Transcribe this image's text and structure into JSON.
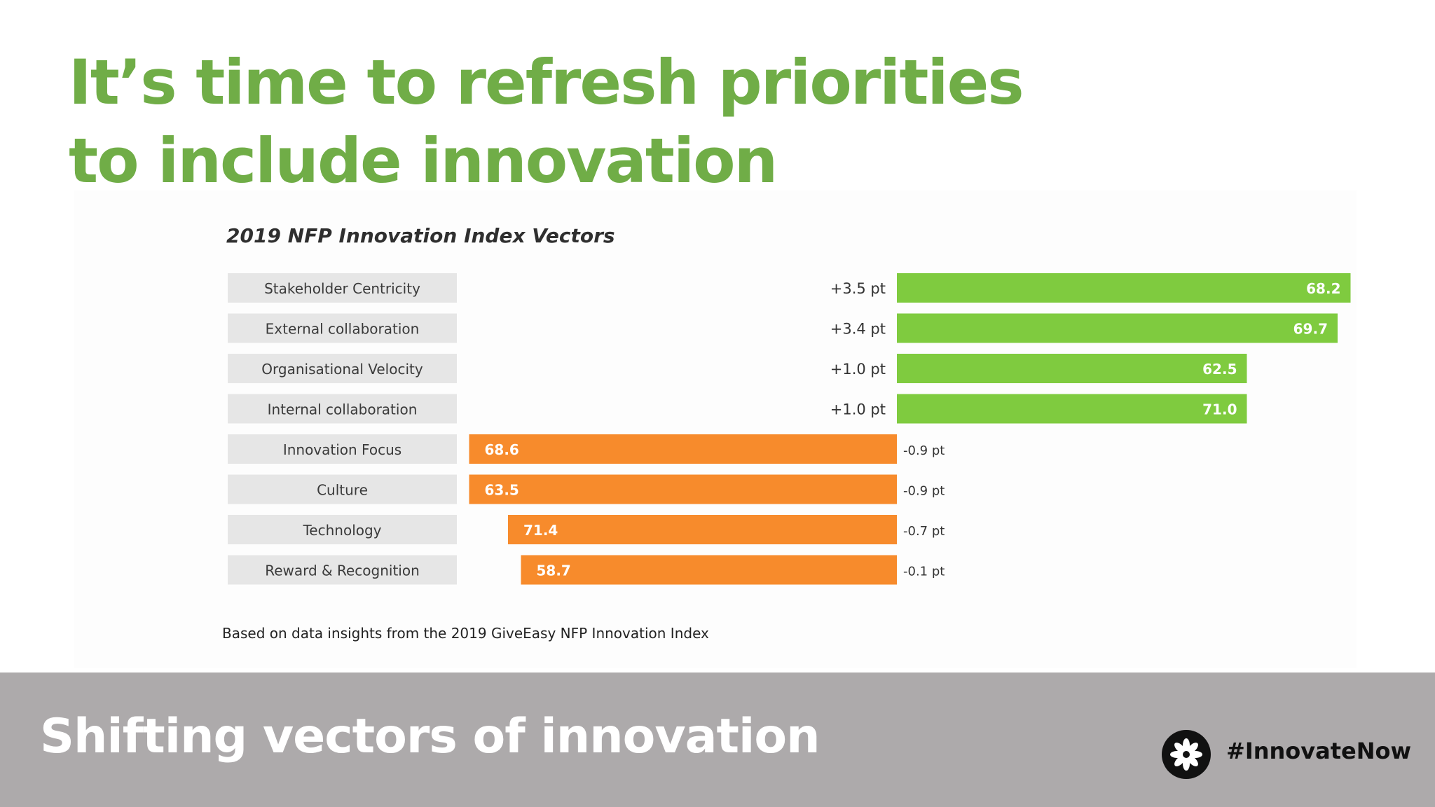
{
  "headline": {
    "line1": "It’s time to refresh priorities",
    "line2": "to include innovation"
  },
  "colors": {
    "headline": "#70ad47",
    "positive": "#7fcb3f",
    "negative": "#f78b2c",
    "label_box": "#e6e6e6",
    "footer": "#adaaab"
  },
  "chart_data": {
    "type": "bar",
    "title": "2019 NFP Innovation Index Vectors",
    "categories": [
      "Stakeholder Centricity",
      "External collaboration",
      "Organisational Velocity",
      "Internal collaboration",
      "Innovation Focus",
      "Culture",
      "Technology",
      "Reward & Recognition"
    ],
    "values": [
      3.5,
      3.4,
      1.0,
      1.0,
      -0.9,
      -0.9,
      -0.7,
      -0.1
    ],
    "value_labels": [
      "+3.5 pt",
      "+3.4 pt",
      "+1.0 pt",
      "+1.0 pt",
      "-0.9 pt",
      "-0.9 pt",
      "-0.7 pt",
      "-0.1 pt"
    ],
    "bar_values": [
      "68.2",
      "69.7",
      "62.5",
      "71.0",
      "68.6",
      "63.5",
      "71.4",
      "58.7"
    ],
    "bar_magnitudes": [
      3.5,
      3.4,
      2.7,
      2.7,
      3.3,
      3.3,
      3.0,
      2.9
    ],
    "xlim": [
      -3.3,
      3.5
    ],
    "grid": false,
    "legend": "none"
  },
  "footnote": "Based on data insights from the 2019 GiveEasy NFP Innovation Index",
  "footer": {
    "title": "Shifting vectors of innovation",
    "hashtag": "#InnovateNow",
    "logo_icon": "flower-icon"
  }
}
